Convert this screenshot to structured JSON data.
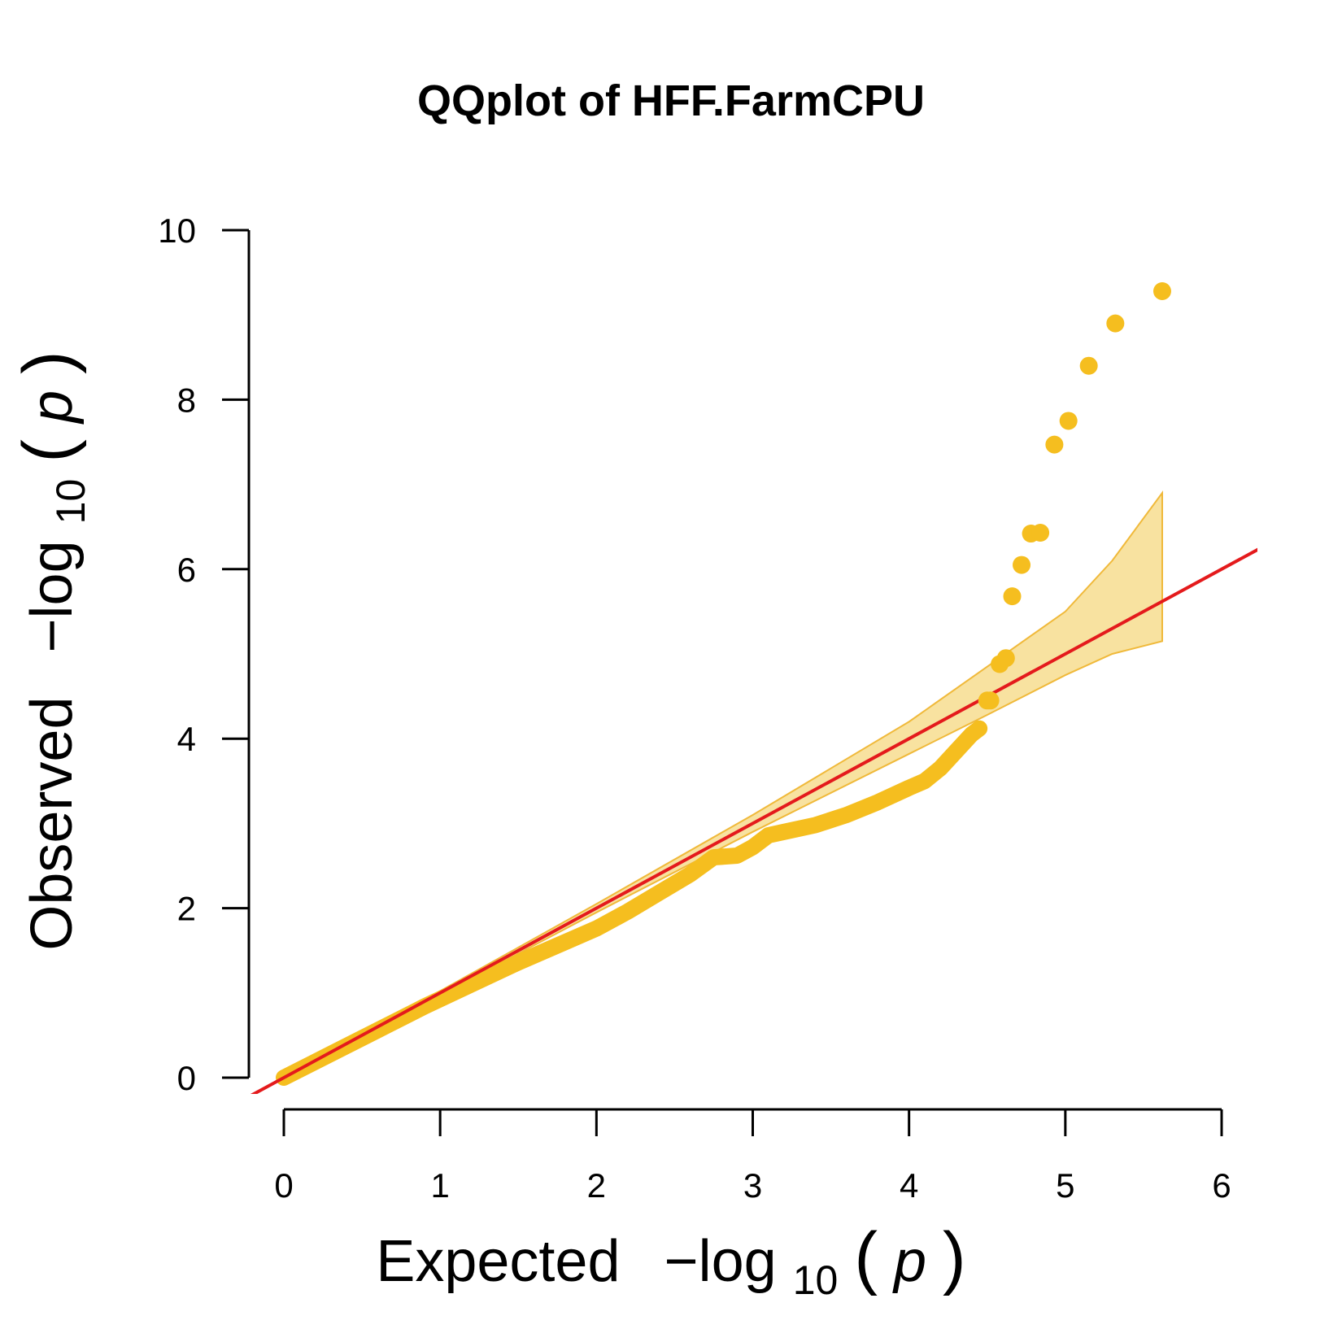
{
  "chart_data": {
    "type": "scatter",
    "title": "QQplot of HFF.FarmCPU",
    "xlabel": {
      "prefix": "Expected",
      "func": "−log",
      "sub": "10",
      "open": "(",
      "var": "p",
      "close": ")"
    },
    "ylabel": {
      "prefix": "Observed",
      "func": "−log",
      "sub": "10",
      "open": "(",
      "var": "p",
      "close": ")"
    },
    "xlim": [
      0,
      6
    ],
    "ylim": [
      0,
      10
    ],
    "x_ticks": [
      0,
      1,
      2,
      3,
      4,
      5,
      6
    ],
    "x_tick_labels": [
      "0",
      "1",
      "2",
      "3",
      "4",
      "5",
      "6"
    ],
    "y_ticks": [
      0,
      2,
      4,
      6,
      8,
      10
    ],
    "y_tick_labels": [
      "0",
      "2",
      "4",
      "6",
      "8",
      "10"
    ],
    "grid": false,
    "point_color": "#F5BE1F",
    "band_fill": "#F8E2A0",
    "band_stroke": "#F0B93A",
    "line_color": "#E41A1C",
    "reference_line": {
      "x": [
        -0.23,
        6.24
      ],
      "y": [
        -0.23,
        6.24
      ]
    },
    "confidence_band": {
      "x": [
        0.9,
        2.0,
        3.0,
        4.0,
        4.5,
        5.0,
        5.3,
        5.62
      ],
      "upper": [
        0.92,
        2.05,
        3.1,
        4.2,
        4.85,
        5.5,
        6.1,
        6.9
      ],
      "lower": [
        0.88,
        1.95,
        2.9,
        3.82,
        4.28,
        4.75,
        5.0,
        5.15
      ]
    },
    "curve": {
      "x": [
        0,
        0.3,
        0.6,
        0.9,
        1.2,
        1.5,
        1.8,
        2.0,
        2.2,
        2.4,
        2.6,
        2.75,
        2.9,
        3.0,
        3.1,
        3.2,
        3.4,
        3.6,
        3.8,
        4.0,
        4.1,
        4.2,
        4.3,
        4.4,
        4.45
      ],
      "y": [
        0,
        0.28,
        0.56,
        0.84,
        1.1,
        1.36,
        1.6,
        1.76,
        1.96,
        2.18,
        2.4,
        2.6,
        2.62,
        2.72,
        2.86,
        2.9,
        2.98,
        3.1,
        3.25,
        3.42,
        3.5,
        3.65,
        3.85,
        4.05,
        4.12
      ]
    },
    "points": {
      "x": [
        4.5,
        4.52,
        4.58,
        4.62,
        4.66,
        4.72,
        4.78,
        4.84,
        4.93,
        5.02,
        5.15,
        5.32,
        5.62
      ],
      "y": [
        4.45,
        4.45,
        4.88,
        4.95,
        5.68,
        6.05,
        6.42,
        6.43,
        7.47,
        7.75,
        8.4,
        8.9,
        9.28
      ]
    }
  }
}
